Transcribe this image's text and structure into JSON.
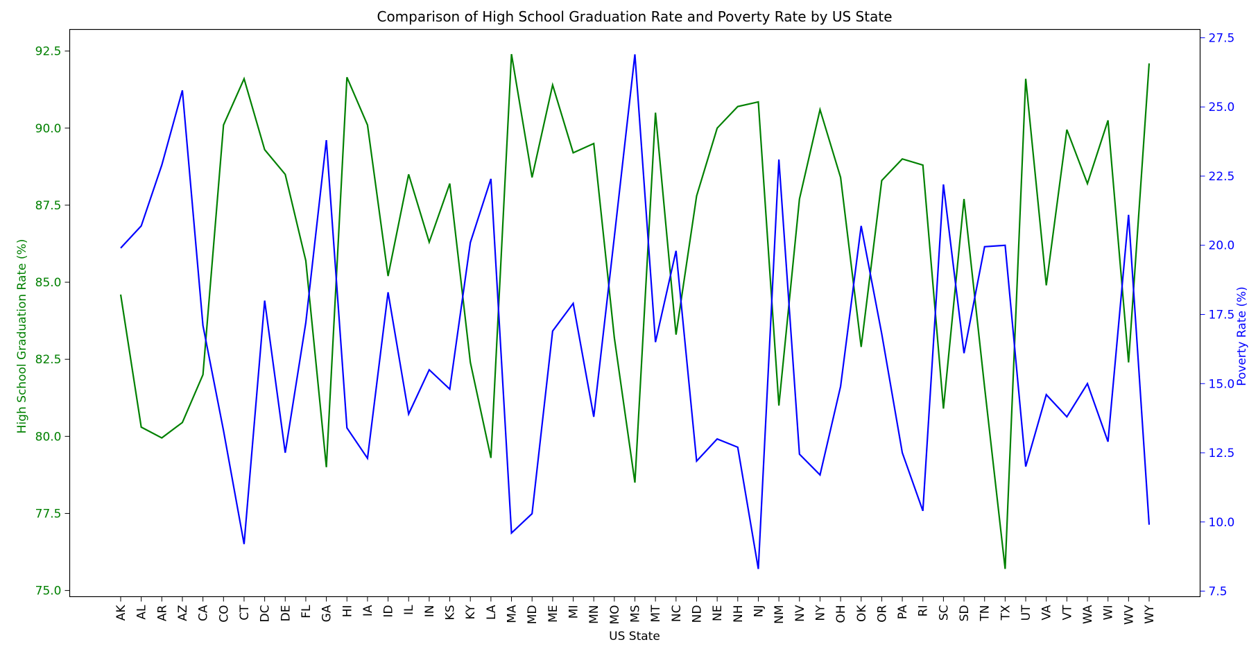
{
  "chart_data": {
    "type": "line",
    "title": "Comparison of High School Graduation Rate and Poverty Rate by US State",
    "xlabel": "US State",
    "categories": [
      "AK",
      "AL",
      "AR",
      "AZ",
      "CA",
      "CO",
      "CT",
      "DC",
      "DE",
      "FL",
      "GA",
      "HI",
      "IA",
      "ID",
      "IL",
      "IN",
      "KS",
      "KY",
      "LA",
      "MA",
      "MD",
      "ME",
      "MI",
      "MN",
      "MO",
      "MS",
      "MT",
      "NC",
      "ND",
      "NE",
      "NH",
      "NJ",
      "NM",
      "NV",
      "NY",
      "OH",
      "OK",
      "OR",
      "PA",
      "RI",
      "SC",
      "SD",
      "TN",
      "TX",
      "UT",
      "VA",
      "VT",
      "WA",
      "WI",
      "WV",
      "WY"
    ],
    "y_left": {
      "label": "High School Graduation Rate (%)",
      "lim": [
        74.8,
        93.2
      ],
      "ticks": [
        75.0,
        77.5,
        80.0,
        82.5,
        85.0,
        87.5,
        90.0,
        92.5
      ],
      "tick_labels": [
        "75.0",
        "77.5",
        "80.0",
        "82.5",
        "85.0",
        "87.5",
        "90.0",
        "92.5"
      ],
      "color": "#008000"
    },
    "y_right": {
      "label": "Poverty Rate (%)",
      "lim": [
        7.3,
        27.8
      ],
      "ticks": [
        7.5,
        10.0,
        12.5,
        15.0,
        17.5,
        20.0,
        22.5,
        25.0,
        27.5
      ],
      "tick_labels": [
        "7.5",
        "10.0",
        "12.5",
        "15.0",
        "17.5",
        "20.0",
        "22.5",
        "25.0",
        "27.5"
      ],
      "color": "#0000ff"
    },
    "series": [
      {
        "axis": "left",
        "color": "#008000",
        "values": [
          84.6,
          80.3,
          79.95,
          80.45,
          82.0,
          90.1,
          91.6,
          89.3,
          88.5,
          85.7,
          79.0,
          91.65,
          90.1,
          85.2,
          88.5,
          86.3,
          88.2,
          82.4,
          79.3,
          92.4,
          88.4,
          91.4,
          89.2,
          89.5,
          83.2,
          78.5,
          90.5,
          83.3,
          87.8,
          90.0,
          90.7,
          90.85,
          81.0,
          87.7,
          90.6,
          88.4,
          82.9,
          88.3,
          89.0,
          88.8,
          80.9,
          87.7,
          81.6,
          75.7,
          91.6,
          84.9,
          89.95,
          88.2,
          90.25,
          82.4,
          92.1
        ]
      },
      {
        "axis": "right",
        "color": "#0000ff",
        "values": [
          19.9,
          20.7,
          22.9,
          25.6,
          17.1,
          13.3,
          9.2,
          18.0,
          12.5,
          17.2,
          23.8,
          13.4,
          12.3,
          18.3,
          13.9,
          15.5,
          14.8,
          20.1,
          22.4,
          9.6,
          10.3,
          16.9,
          17.9,
          13.8,
          20.3,
          26.9,
          16.5,
          19.8,
          12.2,
          13.0,
          12.7,
          8.3,
          23.1,
          12.45,
          11.7,
          14.9,
          20.7,
          16.8,
          12.5,
          10.4,
          22.2,
          16.1,
          19.95,
          20.0,
          12.0,
          14.6,
          13.8,
          15.0,
          12.9,
          21.1,
          9.9
        ]
      }
    ],
    "grid": false
  }
}
